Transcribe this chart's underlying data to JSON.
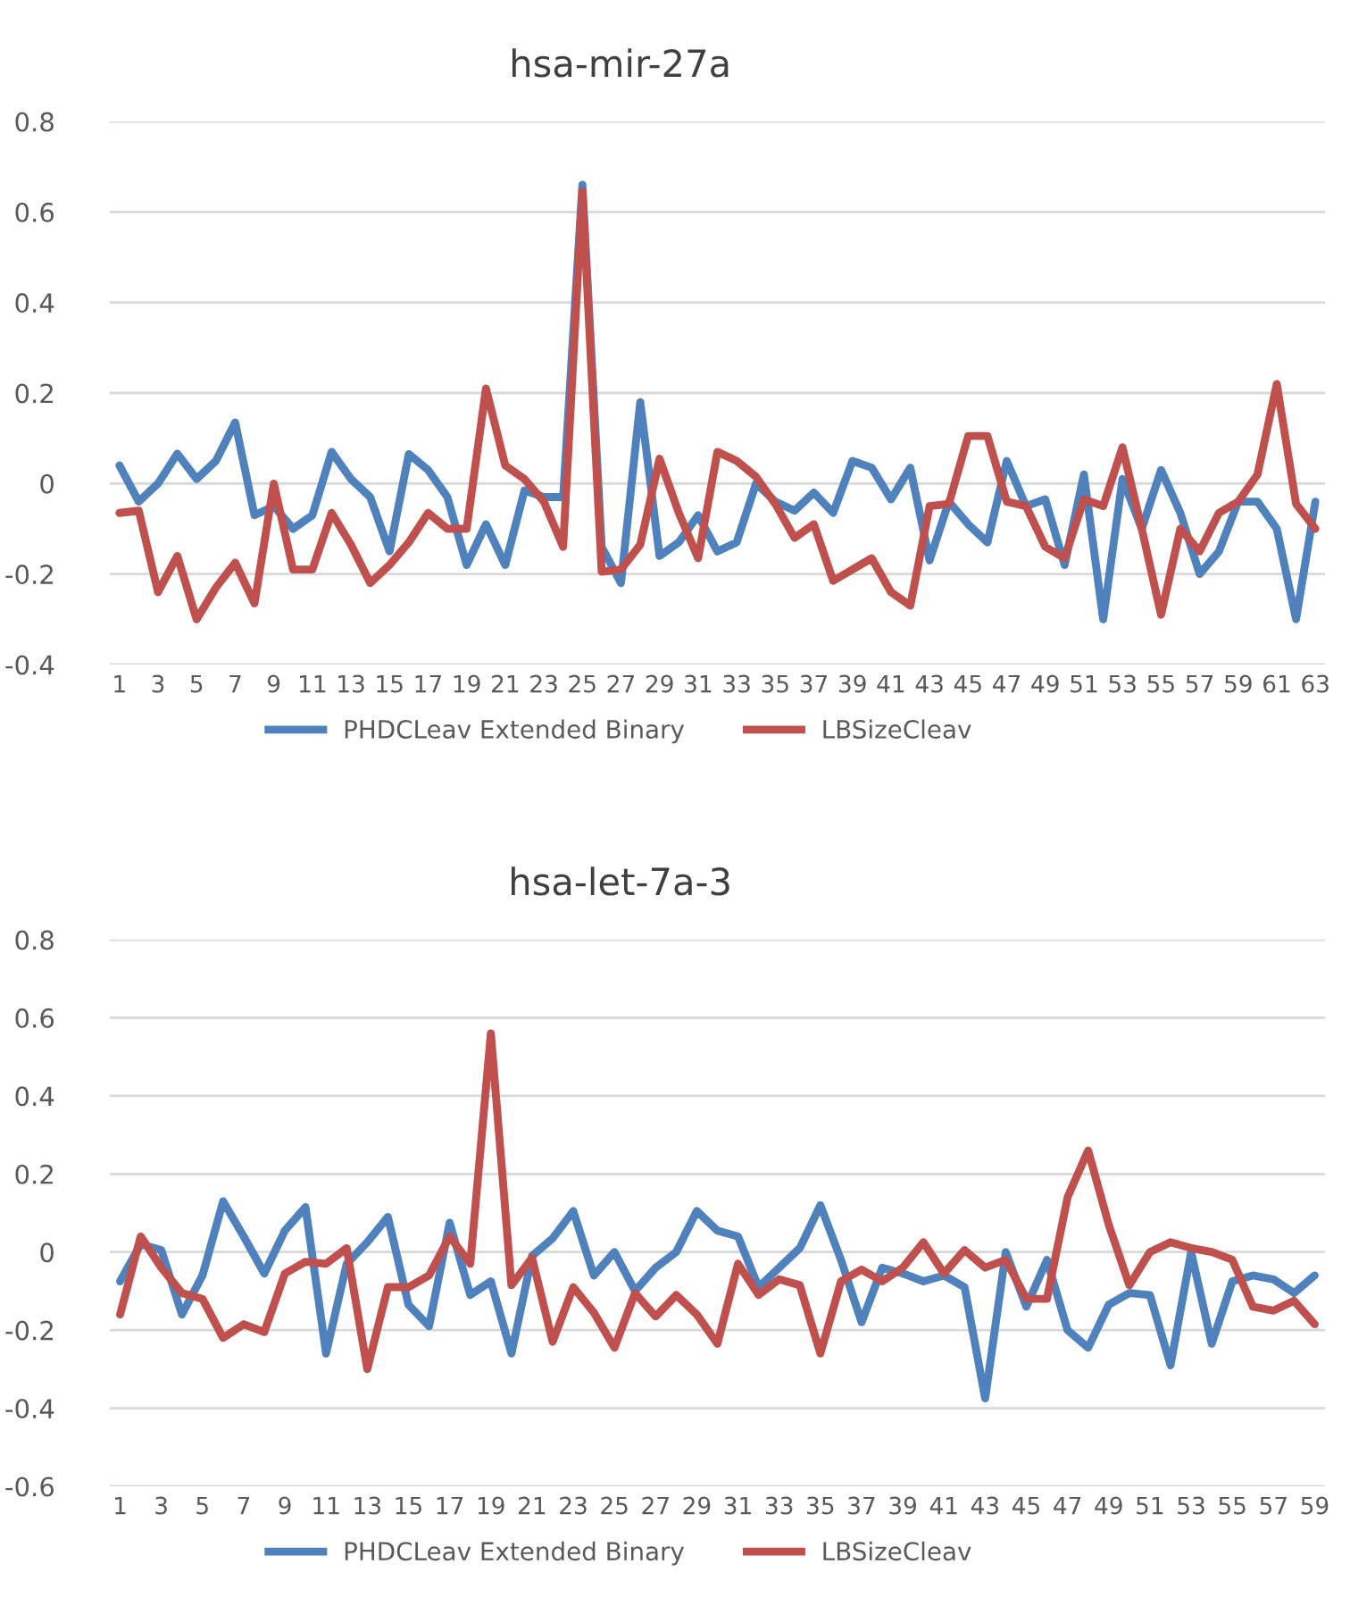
{
  "chart_data": [
    {
      "type": "line",
      "title": "hsa-mir-27a",
      "categories": [
        "1",
        null,
        "3",
        null,
        "5",
        null,
        "7",
        null,
        "9",
        null,
        "11",
        null,
        "13",
        null,
        "15",
        null,
        "17",
        null,
        "19",
        null,
        "21",
        null,
        "23",
        null,
        "25",
        null,
        "27",
        null,
        "29",
        null,
        "31",
        null,
        "33",
        null,
        "35",
        null,
        "37",
        null,
        "39",
        null,
        "41",
        null,
        "43",
        null,
        "45",
        null,
        "47",
        null,
        "49",
        null,
        "51",
        null,
        "53",
        null,
        "55",
        null,
        "57",
        null,
        "59",
        null,
        "61",
        null,
        "63"
      ],
      "series": [
        {
          "name": "PHDCLeav Extended Binary",
          "color": "#4f81bd",
          "values": [
            0.04,
            -0.04,
            0.0,
            0.066,
            0.01,
            0.05,
            0.135,
            -0.07,
            -0.05,
            -0.1,
            -0.07,
            0.07,
            0.01,
            -0.03,
            -0.15,
            0.065,
            0.03,
            -0.03,
            -0.18,
            -0.09,
            -0.18,
            -0.015,
            -0.03,
            -0.03,
            0.66,
            -0.14,
            -0.22,
            0.18,
            -0.16,
            -0.13,
            -0.07,
            -0.15,
            -0.13,
            0.0,
            -0.04,
            -0.06,
            -0.02,
            -0.065,
            0.05,
            0.035,
            -0.035,
            0.035,
            -0.17,
            -0.04,
            -0.09,
            -0.13,
            0.05,
            -0.05,
            -0.035,
            -0.18,
            0.02,
            -0.3,
            0.01,
            -0.1,
            0.03,
            -0.065,
            -0.2,
            -0.15,
            -0.04,
            -0.04,
            -0.1,
            -0.3,
            -0.04
          ]
        },
        {
          "name": "LBSizeCleav",
          "color": "#c0504d",
          "values": [
            -0.065,
            -0.06,
            -0.24,
            -0.16,
            -0.3,
            -0.23,
            -0.175,
            -0.265,
            0.0,
            -0.19,
            -0.19,
            -0.065,
            -0.135,
            -0.22,
            -0.18,
            -0.13,
            -0.065,
            -0.1,
            -0.1,
            0.21,
            0.04,
            0.01,
            -0.04,
            -0.14,
            0.645,
            -0.195,
            -0.19,
            -0.135,
            0.055,
            -0.065,
            -0.165,
            0.07,
            0.05,
            0.015,
            -0.045,
            -0.12,
            -0.09,
            -0.215,
            -0.19,
            -0.165,
            -0.24,
            -0.27,
            -0.05,
            -0.045,
            0.105,
            0.105,
            -0.04,
            -0.05,
            -0.14,
            -0.165,
            -0.035,
            -0.05,
            0.08,
            -0.1,
            -0.29,
            -0.1,
            -0.15,
            -0.065,
            -0.04,
            0.02,
            0.22,
            -0.045,
            -0.1
          ]
        }
      ],
      "ylim": [
        -0.4,
        0.8
      ],
      "yticks": [
        -0.4,
        -0.2,
        0,
        0.2,
        0.4,
        0.6,
        0.8
      ],
      "grid": "y",
      "legend": "bottom",
      "marker": "none",
      "line_style": "solid"
    },
    {
      "type": "line",
      "title": "hsa-let-7a-3",
      "categories": [
        "1",
        null,
        "3",
        null,
        "5",
        null,
        "7",
        null,
        "9",
        null,
        "11",
        null,
        "13",
        null,
        "15",
        null,
        "17",
        null,
        "19",
        null,
        "21",
        null,
        "23",
        null,
        "25",
        null,
        "27",
        null,
        "29",
        null,
        "31",
        null,
        "33",
        null,
        "35",
        null,
        "37",
        null,
        "39",
        null,
        "41",
        null,
        "43",
        null,
        "45",
        null,
        "47",
        null,
        "49",
        null,
        "51",
        null,
        "53",
        null,
        "55",
        null,
        "57",
        null,
        "59"
      ],
      "series": [
        {
          "name": "PHDCLeav Extended Binary",
          "color": "#4f81bd",
          "values": [
            -0.075,
            0.02,
            0.005,
            -0.16,
            -0.06,
            0.13,
            0.04,
            -0.055,
            0.055,
            0.115,
            -0.26,
            -0.03,
            0.025,
            0.09,
            -0.135,
            -0.19,
            0.075,
            -0.11,
            -0.075,
            -0.26,
            -0.01,
            0.035,
            0.105,
            -0.06,
            0.0,
            -0.1,
            -0.04,
            0.0,
            0.105,
            0.055,
            0.04,
            -0.09,
            -0.04,
            0.01,
            0.12,
            -0.02,
            -0.18,
            -0.04,
            -0.055,
            -0.075,
            -0.06,
            -0.09,
            -0.375,
            0.0,
            -0.14,
            -0.02,
            -0.2,
            -0.245,
            -0.135,
            -0.105,
            -0.11,
            -0.29,
            0.0,
            -0.235,
            -0.075,
            -0.06,
            -0.07,
            -0.105,
            -0.06
          ]
        },
        {
          "name": "LBSizeCleav",
          "color": "#c0504d",
          "values": [
            -0.16,
            0.04,
            -0.04,
            -0.105,
            -0.12,
            -0.22,
            -0.185,
            -0.205,
            -0.055,
            -0.025,
            -0.03,
            0.01,
            -0.3,
            -0.09,
            -0.09,
            -0.06,
            0.04,
            -0.03,
            0.56,
            -0.085,
            -0.015,
            -0.23,
            -0.09,
            -0.155,
            -0.245,
            -0.105,
            -0.165,
            -0.11,
            -0.16,
            -0.235,
            -0.03,
            -0.11,
            -0.07,
            -0.085,
            -0.26,
            -0.075,
            -0.045,
            -0.075,
            -0.04,
            0.025,
            -0.055,
            0.005,
            -0.04,
            -0.02,
            -0.12,
            -0.12,
            0.14,
            0.26,
            0.07,
            -0.085,
            0.0,
            0.025,
            0.01,
            0.0,
            -0.02,
            -0.14,
            -0.15,
            -0.125,
            -0.185
          ]
        }
      ],
      "ylim": [
        -0.6,
        0.8
      ],
      "yticks": [
        -0.6,
        -0.4,
        -0.2,
        0,
        0.2,
        0.4,
        0.6,
        0.8
      ],
      "grid": "y",
      "legend": "bottom",
      "marker": "none",
      "line_style": "solid"
    }
  ]
}
